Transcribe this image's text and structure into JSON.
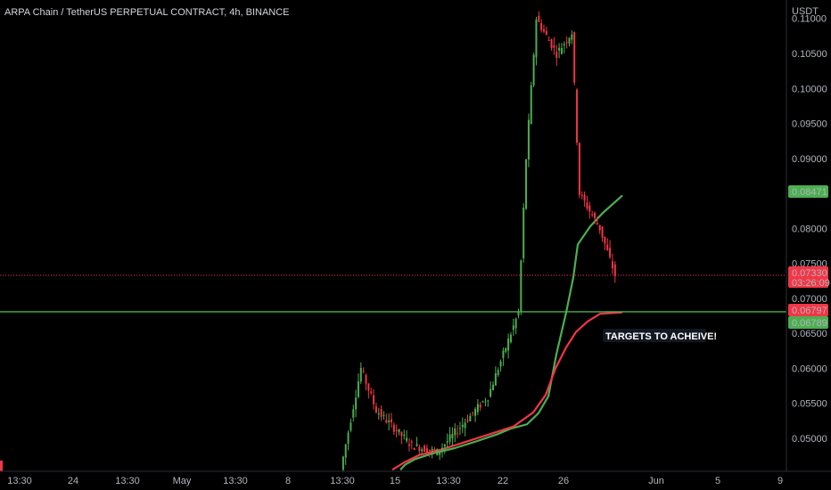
{
  "chart_data": {
    "type": "candlestick",
    "title": "ARPA Chain / TetherUS PERPETUAL CONTRACT, 4h, BINANCE",
    "currency": "USDT",
    "ylim": [
      0.0455,
      0.1125
    ],
    "y_ticks": [
      "0.11000",
      "0.10500",
      "0.10000",
      "0.09500",
      "0.09000",
      "0.08500",
      "0.08000",
      "0.07500",
      "0.07000",
      "0.06500",
      "0.06000",
      "0.05500",
      "0.05000"
    ],
    "x_ticks": [
      "13:30",
      "24",
      "13:30",
      "May",
      "13:30",
      "8",
      "13:30",
      "15",
      "13:30",
      "22",
      "26",
      "Jun",
      "5",
      "9"
    ],
    "price_labels": [
      {
        "value": 0.08471,
        "text": "0.08471",
        "color": "#4caf50"
      },
      {
        "value": 0.0733,
        "text": "0.07330",
        "sub": "03:26:09",
        "color": "#f23645"
      },
      {
        "value": 0.06797,
        "text": "0.06797",
        "color": "#f23645"
      },
      {
        "value": 0.06789,
        "text": "0.06789",
        "color": "#4caf50"
      }
    ],
    "horizontal_line": {
      "value": 0.06789,
      "color": "#4caf50"
    },
    "annotation": "TARGETS TO ACHEIVE!",
    "up_color": "#4caf50",
    "down_color": "#f23645",
    "green_ma": [
      [
        0.0455,
        9
      ],
      [
        0.0462,
        14
      ],
      [
        0.047,
        25
      ],
      [
        0.0478,
        44
      ],
      [
        0.0486,
        70
      ],
      [
        0.0496,
        95
      ],
      [
        0.0506,
        118
      ],
      [
        0.0514,
        133
      ],
      [
        0.052,
        151
      ],
      [
        0.0536,
        164
      ],
      [
        0.056,
        175
      ],
      [
        0.062,
        184
      ],
      [
        0.068,
        195
      ],
      [
        0.073,
        203
      ],
      [
        0.0777,
        208
      ],
      [
        0.0803,
        222
      ],
      [
        0.0822,
        236
      ],
      [
        0.0847,
        258
      ]
    ],
    "red_ma": [
      [
        0.0455,
        0
      ],
      [
        0.0466,
        14
      ],
      [
        0.0476,
        30
      ],
      [
        0.0484,
        55
      ],
      [
        0.0494,
        80
      ],
      [
        0.0505,
        107
      ],
      [
        0.0517,
        136
      ],
      [
        0.0537,
        158
      ],
      [
        0.0562,
        172
      ],
      [
        0.06,
        183
      ],
      [
        0.063,
        195
      ],
      [
        0.0652,
        206
      ],
      [
        0.0667,
        219
      ],
      [
        0.0678,
        233
      ],
      [
        0.068,
        258
      ]
    ]
  }
}
